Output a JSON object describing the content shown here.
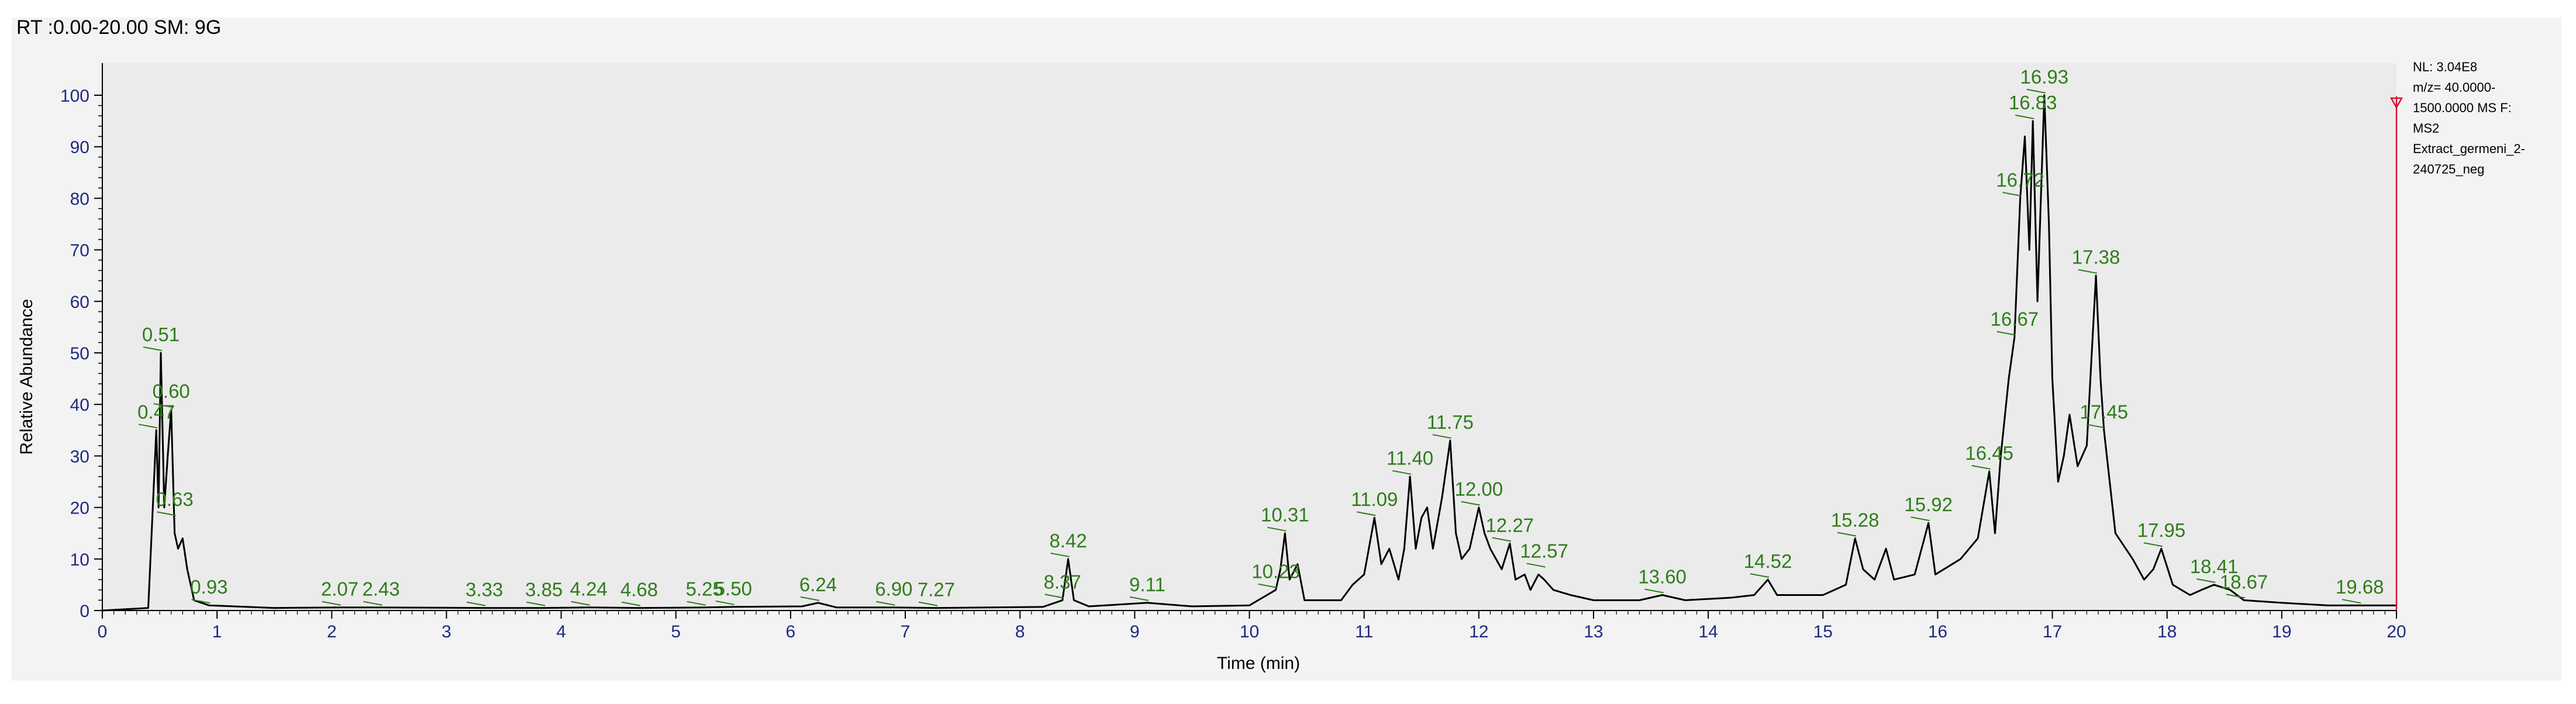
{
  "header": {
    "text": "RT :0.00-20.00 SM: 9G"
  },
  "side_note": {
    "lines": [
      "NL: 3.04E8",
      "m/z= 40.0000-",
      "1500.0000 MS  F:",
      "MS2",
      "Extract_germeni_2-",
      "240725_neg"
    ]
  },
  "colors": {
    "trace": "#000000",
    "peak_label": "#2e7d1a",
    "tick_label": "#1f2a80",
    "plot_background": "#ebebeb",
    "marker": "#e0102a"
  },
  "chart_data": {
    "type": "line",
    "xlabel": "Time (min)",
    "ylabel": "Relative Abundance",
    "xlim": [
      0,
      20
    ],
    "ylim": [
      0,
      100
    ],
    "x_ticks": [
      0,
      1,
      2,
      3,
      4,
      5,
      6,
      7,
      8,
      9,
      10,
      11,
      12,
      13,
      14,
      15,
      16,
      17,
      18,
      19,
      20
    ],
    "y_ticks": [
      0,
      10,
      20,
      30,
      40,
      50,
      60,
      70,
      80,
      90,
      100
    ],
    "grid": false,
    "marker_line_x": 20,
    "series": [
      {
        "points": [
          [
            0,
            0
          ],
          [
            0.4,
            0.5
          ],
          [
            0.44,
            20
          ],
          [
            0.47,
            35
          ],
          [
            0.49,
            20
          ],
          [
            0.51,
            50
          ],
          [
            0.54,
            20
          ],
          [
            0.57,
            30
          ],
          [
            0.6,
            39
          ],
          [
            0.63,
            15
          ],
          [
            0.66,
            12
          ],
          [
            0.7,
            14
          ],
          [
            0.74,
            8
          ],
          [
            0.8,
            2
          ],
          [
            0.93,
            1
          ],
          [
            1.5,
            0.5
          ],
          [
            2.07,
            0.6
          ],
          [
            2.43,
            0.6
          ],
          [
            3.33,
            0.5
          ],
          [
            3.85,
            0.5
          ],
          [
            4.24,
            0.6
          ],
          [
            4.68,
            0.5
          ],
          [
            5.25,
            0.6
          ],
          [
            5.5,
            0.7
          ],
          [
            6.1,
            0.8
          ],
          [
            6.24,
            1.5
          ],
          [
            6.4,
            0.6
          ],
          [
            6.9,
            0.6
          ],
          [
            7.27,
            0.5
          ],
          [
            8.2,
            0.7
          ],
          [
            8.37,
            2
          ],
          [
            8.42,
            10
          ],
          [
            8.47,
            2
          ],
          [
            8.6,
            0.8
          ],
          [
            9.11,
            1.5
          ],
          [
            9.5,
            0.8
          ],
          [
            10.0,
            1
          ],
          [
            10.23,
            4
          ],
          [
            10.27,
            8
          ],
          [
            10.31,
            15
          ],
          [
            10.35,
            6
          ],
          [
            10.42,
            9
          ],
          [
            10.48,
            2
          ],
          [
            10.6,
            2
          ],
          [
            10.8,
            2
          ],
          [
            10.9,
            5
          ],
          [
            11.0,
            7
          ],
          [
            11.09,
            18
          ],
          [
            11.15,
            9
          ],
          [
            11.22,
            12
          ],
          [
            11.3,
            6
          ],
          [
            11.35,
            12
          ],
          [
            11.4,
            26
          ],
          [
            11.45,
            12
          ],
          [
            11.5,
            18
          ],
          [
            11.55,
            20
          ],
          [
            11.6,
            12
          ],
          [
            11.68,
            22
          ],
          [
            11.75,
            33
          ],
          [
            11.8,
            15
          ],
          [
            11.85,
            10
          ],
          [
            11.92,
            12
          ],
          [
            12.0,
            20
          ],
          [
            12.05,
            15
          ],
          [
            12.1,
            12
          ],
          [
            12.2,
            8
          ],
          [
            12.27,
            13
          ],
          [
            12.32,
            6
          ],
          [
            12.4,
            7
          ],
          [
            12.45,
            4
          ],
          [
            12.52,
            7
          ],
          [
            12.57,
            6
          ],
          [
            12.65,
            4
          ],
          [
            12.8,
            3
          ],
          [
            13.0,
            2
          ],
          [
            13.4,
            2
          ],
          [
            13.6,
            3
          ],
          [
            13.8,
            2
          ],
          [
            14.2,
            2.5
          ],
          [
            14.4,
            3
          ],
          [
            14.52,
            6
          ],
          [
            14.6,
            3
          ],
          [
            15.0,
            3
          ],
          [
            15.2,
            5
          ],
          [
            15.28,
            14
          ],
          [
            15.35,
            8
          ],
          [
            15.45,
            6
          ],
          [
            15.55,
            12
          ],
          [
            15.62,
            6
          ],
          [
            15.8,
            7
          ],
          [
            15.92,
            17
          ],
          [
            15.98,
            7
          ],
          [
            16.2,
            10
          ],
          [
            16.35,
            14
          ],
          [
            16.45,
            27
          ],
          [
            16.5,
            15
          ],
          [
            16.55,
            30
          ],
          [
            16.62,
            45
          ],
          [
            16.67,
            53
          ],
          [
            16.72,
            80
          ],
          [
            16.76,
            92
          ],
          [
            16.8,
            70
          ],
          [
            16.83,
            95
          ],
          [
            16.87,
            60
          ],
          [
            16.93,
            100
          ],
          [
            16.97,
            75
          ],
          [
            17.0,
            45
          ],
          [
            17.05,
            25
          ],
          [
            17.1,
            30
          ],
          [
            17.15,
            38
          ],
          [
            17.22,
            28
          ],
          [
            17.3,
            32
          ],
          [
            17.38,
            65
          ],
          [
            17.42,
            45
          ],
          [
            17.45,
            35
          ],
          [
            17.55,
            15
          ],
          [
            17.7,
            10
          ],
          [
            17.8,
            6
          ],
          [
            17.88,
            8
          ],
          [
            17.95,
            12
          ],
          [
            18.05,
            5
          ],
          [
            18.2,
            3
          ],
          [
            18.3,
            4
          ],
          [
            18.41,
            5
          ],
          [
            18.55,
            4
          ],
          [
            18.67,
            2
          ],
          [
            19.0,
            1.5
          ],
          [
            19.4,
            1
          ],
          [
            19.68,
            1
          ],
          [
            20.0,
            1
          ]
        ]
      }
    ],
    "peak_labels": [
      {
        "x": 0.47,
        "y": 35,
        "text": "0.47"
      },
      {
        "x": 0.51,
        "y": 50,
        "text": "0.51"
      },
      {
        "x": 0.6,
        "y": 39,
        "text": "0.60"
      },
      {
        "x": 0.63,
        "y": 18,
        "text": "0.63"
      },
      {
        "x": 0.93,
        "y": 1,
        "text": "0.93"
      },
      {
        "x": 2.07,
        "y": 0.6,
        "text": "2.07"
      },
      {
        "x": 2.43,
        "y": 0.6,
        "text": "2.43"
      },
      {
        "x": 3.33,
        "y": 0.5,
        "text": "3.33"
      },
      {
        "x": 3.85,
        "y": 0.5,
        "text": "3.85"
      },
      {
        "x": 4.24,
        "y": 0.6,
        "text": "4.24"
      },
      {
        "x": 4.68,
        "y": 0.5,
        "text": "4.68"
      },
      {
        "x": 5.25,
        "y": 0.6,
        "text": "5.25"
      },
      {
        "x": 5.5,
        "y": 0.7,
        "text": "5.50"
      },
      {
        "x": 6.24,
        "y": 1.5,
        "text": "6.24"
      },
      {
        "x": 6.9,
        "y": 0.6,
        "text": "6.90"
      },
      {
        "x": 7.27,
        "y": 0.5,
        "text": "7.27"
      },
      {
        "x": 8.37,
        "y": 2,
        "text": "8.37"
      },
      {
        "x": 8.42,
        "y": 10,
        "text": "8.42"
      },
      {
        "x": 9.11,
        "y": 1.5,
        "text": "9.11"
      },
      {
        "x": 10.23,
        "y": 4,
        "text": "10.23"
      },
      {
        "x": 10.31,
        "y": 15,
        "text": "10.31"
      },
      {
        "x": 11.09,
        "y": 18,
        "text": "11.09"
      },
      {
        "x": 11.4,
        "y": 26,
        "text": "11.40"
      },
      {
        "x": 11.75,
        "y": 33,
        "text": "11.75"
      },
      {
        "x": 12.0,
        "y": 20,
        "text": "12.00"
      },
      {
        "x": 12.27,
        "y": 13,
        "text": "12.27"
      },
      {
        "x": 12.57,
        "y": 8,
        "text": "12.57"
      },
      {
        "x": 13.6,
        "y": 3,
        "text": "13.60"
      },
      {
        "x": 14.52,
        "y": 6,
        "text": "14.52"
      },
      {
        "x": 15.28,
        "y": 14,
        "text": "15.28"
      },
      {
        "x": 15.92,
        "y": 17,
        "text": "15.92"
      },
      {
        "x": 16.45,
        "y": 27,
        "text": "16.45"
      },
      {
        "x": 16.67,
        "y": 53,
        "text": "16.67"
      },
      {
        "x": 16.72,
        "y": 80,
        "text": "16.72"
      },
      {
        "x": 16.83,
        "y": 95,
        "text": "16.83"
      },
      {
        "x": 16.93,
        "y": 100,
        "text": "16.93"
      },
      {
        "x": 17.38,
        "y": 65,
        "text": "17.38"
      },
      {
        "x": 17.45,
        "y": 35,
        "text": "17.45"
      },
      {
        "x": 17.95,
        "y": 12,
        "text": "17.95"
      },
      {
        "x": 18.41,
        "y": 5,
        "text": "18.41"
      },
      {
        "x": 18.67,
        "y": 2,
        "text": "18.67"
      },
      {
        "x": 19.68,
        "y": 1,
        "text": "19.68"
      }
    ]
  }
}
